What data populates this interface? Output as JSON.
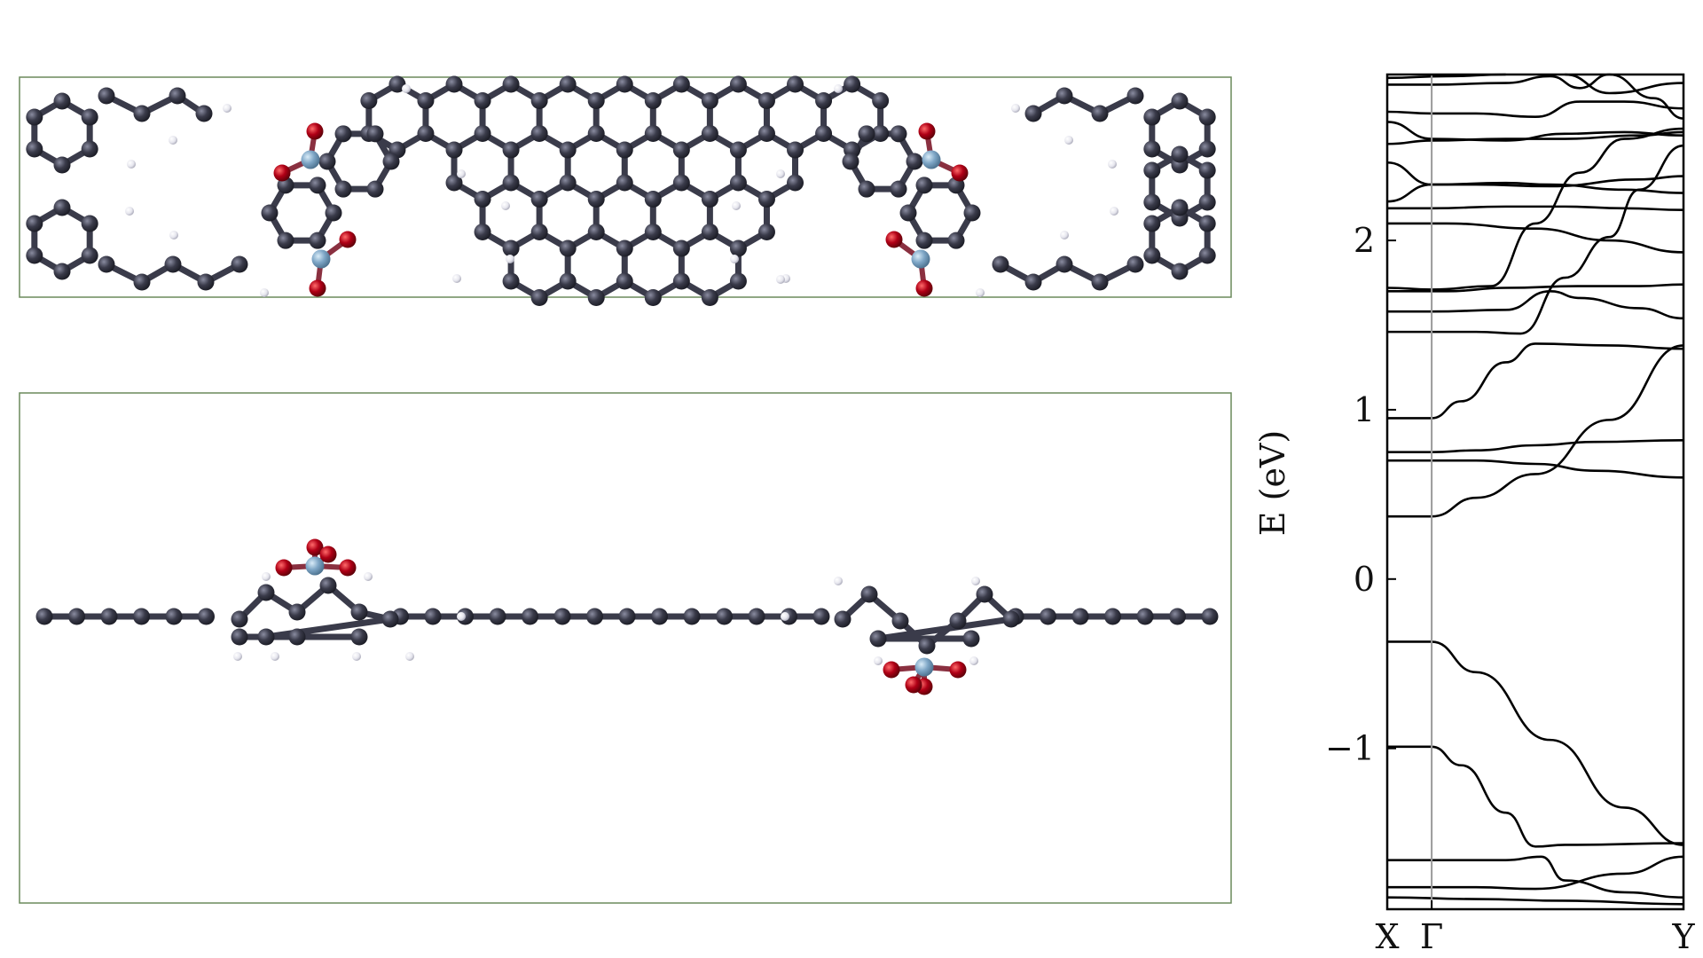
{
  "figure": {
    "panels": [
      "top-view",
      "side-view",
      "band-structure"
    ]
  },
  "colors": {
    "carbon": "#3a3b4a",
    "hydrogen": "#e8e8ee",
    "oxygen": "#b00016",
    "boron": "#7ea6c6",
    "frame": "#6b8a5c",
    "band": "#000000",
    "gamma_line": "#9a9a9a"
  },
  "chart_data": {
    "type": "line",
    "title": "",
    "ylabel": "E (eV)",
    "xlabel": "",
    "x_ticks": [
      {
        "label": "X",
        "k": 0.0
      },
      {
        "label": "Γ",
        "k": 0.15
      },
      {
        "label": "Y",
        "k": 1.0
      }
    ],
    "ylim": [
      -1.95,
      2.98
    ],
    "y_ticks": [
      {
        "value": -1,
        "label": "−1"
      },
      {
        "value": 0,
        "label": "0"
      },
      {
        "value": 1,
        "label": "1"
      },
      {
        "value": 2,
        "label": "2"
      }
    ],
    "grid": false,
    "series": [
      {
        "points": [
          [
            0,
            -0.37
          ],
          [
            0.15,
            -0.37
          ],
          [
            0.3,
            -0.55
          ],
          [
            0.55,
            -0.95
          ],
          [
            0.8,
            -1.35
          ],
          [
            1.0,
            -1.57
          ]
        ]
      },
      {
        "points": [
          [
            0,
            -0.99
          ],
          [
            0.15,
            -0.99
          ],
          [
            0.25,
            -1.1
          ],
          [
            0.4,
            -1.38
          ],
          [
            0.5,
            -1.58
          ],
          [
            0.6,
            -1.57
          ],
          [
            1.0,
            -1.56
          ]
        ]
      },
      {
        "points": [
          [
            0,
            -1.66
          ],
          [
            0.4,
            -1.66
          ],
          [
            0.52,
            -1.64
          ],
          [
            0.6,
            -1.78
          ],
          [
            0.8,
            -1.85
          ],
          [
            1.0,
            -1.88
          ]
        ]
      },
      {
        "points": [
          [
            0,
            -1.82
          ],
          [
            0.3,
            -1.82
          ],
          [
            0.5,
            -1.83
          ],
          [
            0.8,
            -1.74
          ],
          [
            1.0,
            -1.64
          ]
        ]
      },
      {
        "points": [
          [
            0,
            -1.88
          ],
          [
            0.3,
            -1.89
          ],
          [
            0.6,
            -1.9
          ],
          [
            1.0,
            -1.92
          ]
        ]
      },
      {
        "points": [
          [
            0,
            0.37
          ],
          [
            0.15,
            0.37
          ],
          [
            0.3,
            0.48
          ],
          [
            0.5,
            0.62
          ],
          [
            0.75,
            0.94
          ],
          [
            1.0,
            1.38
          ]
        ]
      },
      {
        "points": [
          [
            0,
            0.7
          ],
          [
            0.15,
            0.7
          ],
          [
            0.3,
            0.7
          ],
          [
            0.5,
            0.68
          ],
          [
            0.7,
            0.64
          ],
          [
            1.0,
            0.6
          ]
        ]
      },
      {
        "points": [
          [
            0,
            0.75
          ],
          [
            0.15,
            0.75
          ],
          [
            0.3,
            0.76
          ],
          [
            0.5,
            0.79
          ],
          [
            0.7,
            0.81
          ],
          [
            1.0,
            0.82
          ]
        ]
      },
      {
        "points": [
          [
            0,
            0.95
          ],
          [
            0.15,
            0.95
          ],
          [
            0.25,
            1.05
          ],
          [
            0.4,
            1.28
          ],
          [
            0.5,
            1.39
          ],
          [
            0.75,
            1.38
          ],
          [
            1.0,
            1.36
          ]
        ]
      },
      {
        "points": [
          [
            0,
            1.46
          ],
          [
            0.3,
            1.46
          ],
          [
            0.45,
            1.45
          ],
          [
            0.6,
            1.78
          ],
          [
            0.75,
            2.02
          ],
          [
            0.85,
            2.3
          ],
          [
            1.0,
            2.56
          ]
        ]
      },
      {
        "points": [
          [
            0,
            1.58
          ],
          [
            0.15,
            1.58
          ],
          [
            0.4,
            1.59
          ],
          [
            0.55,
            1.7
          ],
          [
            0.65,
            1.66
          ],
          [
            0.85,
            1.6
          ],
          [
            1.0,
            1.54
          ]
        ]
      },
      {
        "points": [
          [
            0,
            1.7
          ],
          [
            0.2,
            1.7
          ],
          [
            0.4,
            1.72
          ],
          [
            0.65,
            1.73
          ],
          [
            0.85,
            1.73
          ],
          [
            1.0,
            1.74
          ]
        ]
      },
      {
        "points": [
          [
            0,
            1.72
          ],
          [
            0.15,
            1.71
          ],
          [
            0.35,
            1.73
          ],
          [
            0.5,
            2.1
          ],
          [
            0.65,
            2.4
          ],
          [
            0.8,
            2.6
          ],
          [
            1.0,
            2.66
          ]
        ]
      },
      {
        "points": [
          [
            0,
            2.1
          ],
          [
            0.2,
            2.1
          ],
          [
            0.5,
            2.07
          ],
          [
            0.75,
            2.0
          ],
          [
            1.0,
            1.93
          ]
        ]
      },
      {
        "points": [
          [
            0,
            2.19
          ],
          [
            0.15,
            2.19
          ],
          [
            0.4,
            2.2
          ],
          [
            0.6,
            2.2
          ],
          [
            0.8,
            2.19
          ],
          [
            1.0,
            2.18
          ]
        ]
      },
      {
        "points": [
          [
            0,
            2.23
          ],
          [
            0.15,
            2.33
          ],
          [
            0.4,
            2.34
          ],
          [
            0.55,
            2.33
          ],
          [
            0.8,
            2.3
          ],
          [
            1.0,
            2.28
          ]
        ]
      },
      {
        "points": [
          [
            0,
            2.46
          ],
          [
            0.15,
            2.33
          ],
          [
            0.3,
            2.33
          ],
          [
            0.55,
            2.32
          ],
          [
            0.85,
            2.36
          ],
          [
            1.0,
            2.38
          ]
        ]
      },
      {
        "points": [
          [
            0,
            2.57
          ],
          [
            0.15,
            2.59
          ],
          [
            0.4,
            2.6
          ],
          [
            0.6,
            2.6
          ],
          [
            0.85,
            2.62
          ],
          [
            1.0,
            2.64
          ]
        ]
      },
      {
        "points": [
          [
            0,
            2.7
          ],
          [
            0.15,
            2.6
          ],
          [
            0.4,
            2.59
          ],
          [
            0.6,
            2.63
          ],
          [
            0.8,
            2.64
          ],
          [
            1.0,
            2.62
          ]
        ]
      },
      {
        "points": [
          [
            0,
            2.76
          ],
          [
            0.15,
            2.75
          ],
          [
            0.3,
            2.75
          ],
          [
            0.5,
            2.73
          ],
          [
            0.65,
            2.82
          ],
          [
            0.8,
            2.82
          ],
          [
            1.0,
            2.78
          ]
        ]
      },
      {
        "points": [
          [
            0,
            2.92
          ],
          [
            0.15,
            2.92
          ],
          [
            0.4,
            2.93
          ],
          [
            0.55,
            2.97
          ],
          [
            0.65,
            2.9
          ],
          [
            0.75,
            2.98
          ],
          [
            0.9,
            2.84
          ],
          [
            1.0,
            2.72
          ]
        ]
      },
      {
        "points": [
          [
            0,
            2.96
          ],
          [
            0.2,
            2.97
          ],
          [
            0.4,
            2.98
          ]
        ]
      },
      {
        "points": [
          [
            0.6,
            2.98
          ],
          [
            0.75,
            2.87
          ],
          [
            1.0,
            2.93
          ]
        ]
      }
    ]
  }
}
